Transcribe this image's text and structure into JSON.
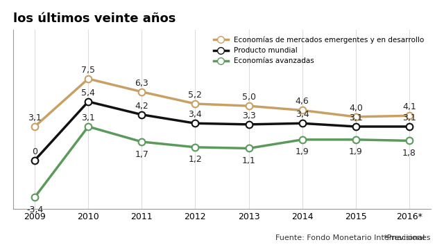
{
  "chart_data": {
    "type": "line",
    "title": "los últimos veinte años",
    "categories": [
      "2009",
      "2010",
      "2011",
      "2012",
      "2013",
      "2014",
      "2015",
      "2016*"
    ],
    "series": [
      {
        "name": "Economías de mercados emergentes y en desarrollo",
        "color": "#c9a064",
        "marker": "o",
        "values": [
          3.1,
          7.5,
          6.3,
          5.2,
          5.0,
          4.6,
          4.0,
          4.1
        ],
        "value_labels": [
          "3,1",
          "7,5",
          "6,3",
          "5,2",
          "5,0",
          "4,6",
          "4,0",
          "4,1"
        ]
      },
      {
        "name": "Producto mundial",
        "color": "#111111",
        "marker": "o",
        "values": [
          0,
          5.4,
          4.2,
          3.4,
          3.3,
          3.4,
          3.1,
          3.1
        ],
        "value_labels": [
          "0",
          "5,4",
          "4,2",
          "3,4",
          "3,3",
          "3,4",
          "3,1",
          "3,1"
        ]
      },
      {
        "name": "Economías avanzadas",
        "color": "#5a9a5a",
        "marker": "o",
        "values": [
          -3.4,
          3.1,
          1.7,
          1.2,
          1.1,
          1.9,
          1.9,
          1.8
        ],
        "value_labels": [
          "-3,4",
          "3,1",
          "1,7",
          "1,2",
          "1,1",
          "1,9",
          "1,9",
          "1,8"
        ]
      }
    ],
    "ylim": [
      -4.5,
      12
    ],
    "yticks": [],
    "tick_labels": "x",
    "data_labels": true,
    "legend": "upper right",
    "source": "Fuente: Fondo Monetario Internacional",
    "note": "*Previsiones"
  }
}
